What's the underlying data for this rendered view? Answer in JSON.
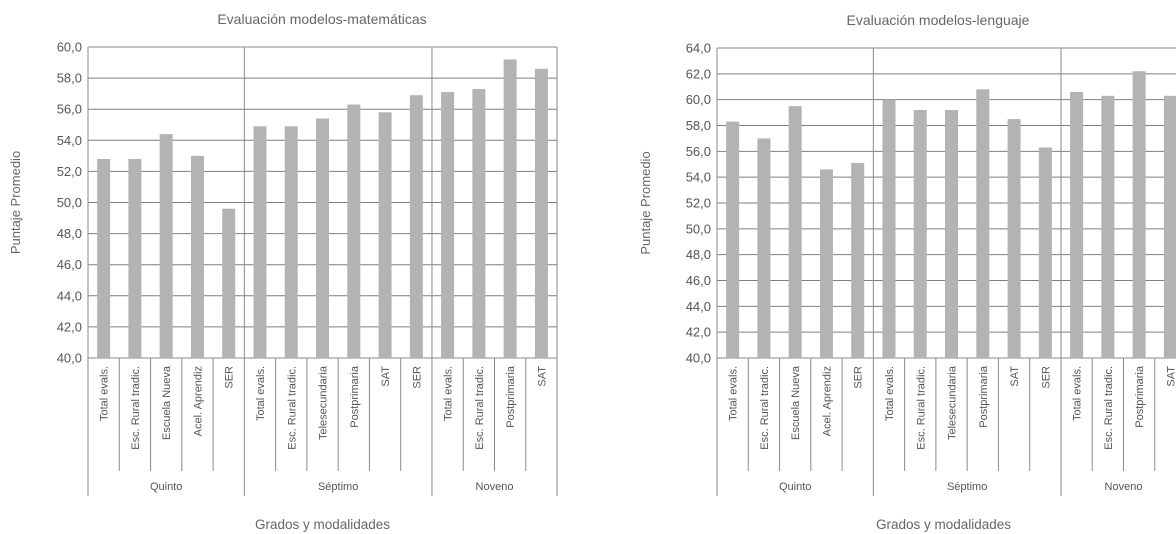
{
  "chart_data": [
    {
      "type": "bar",
      "title": "Evaluación modelos-matemáticas",
      "ylabel": "Puntaje Promedio",
      "xlabel": "Grados y modalidades",
      "ylim": [
        40,
        60
      ],
      "yticks": [
        "40,0",
        "42,0",
        "44,0",
        "46,0",
        "48,0",
        "50,0",
        "52,0",
        "54,0",
        "56,0",
        "58,0",
        "60,0"
      ],
      "grid": true,
      "groups": [
        {
          "name": "Quinto",
          "categories": [
            "Total evals.",
            "Esc. Rural tradic.",
            "Escuela Nueva",
            "Acel. Aprendiz",
            "SER"
          ],
          "values": [
            52.8,
            52.8,
            54.4,
            53.0,
            49.6
          ]
        },
        {
          "name": "Séptimo",
          "categories": [
            "Total evals.",
            "Esc. Rural tradic.",
            "Telesecundaria",
            "Postprimaria",
            "SAT",
            "SER"
          ],
          "values": [
            54.9,
            54.9,
            55.4,
            56.3,
            55.8,
            56.9
          ]
        },
        {
          "name": "Noveno",
          "categories": [
            "Total evals.",
            "Esc. Rural tradic.",
            "Postprimaria",
            "SAT"
          ],
          "values": [
            57.1,
            57.3,
            59.2,
            58.6
          ]
        }
      ]
    },
    {
      "type": "bar",
      "title": "Evaluación modelos-lenguaje",
      "ylabel": "Puntaje Promedio",
      "xlabel": "Grados y modalidades",
      "ylim": [
        40,
        64
      ],
      "yticks": [
        "40,0",
        "42,0",
        "44,0",
        "46,0",
        "48,0",
        "50,0",
        "52,0",
        "54,0",
        "56,0",
        "58,0",
        "60,0",
        "62,0",
        "64,0"
      ],
      "grid": true,
      "groups": [
        {
          "name": "Quinto",
          "categories": [
            "Total evals.",
            "Esc. Rural tradic.",
            "Escuela Nueva",
            "Acel. Aprendiz",
            "SER"
          ],
          "values": [
            58.3,
            57.0,
            59.5,
            54.6,
            55.1
          ]
        },
        {
          "name": "Séptimo",
          "categories": [
            "Total evals.",
            "Esc. Rural tradic.",
            "Telesecundaria",
            "Postprimaria",
            "SAT",
            "SER"
          ],
          "values": [
            60.0,
            59.2,
            59.2,
            60.8,
            58.5,
            56.3
          ]
        },
        {
          "name": "Noveno",
          "categories": [
            "Total evals.",
            "Esc. Rural tradic.",
            "Postprimaria",
            "SAT"
          ],
          "values": [
            60.6,
            60.3,
            62.2,
            60.3
          ]
        }
      ]
    }
  ]
}
